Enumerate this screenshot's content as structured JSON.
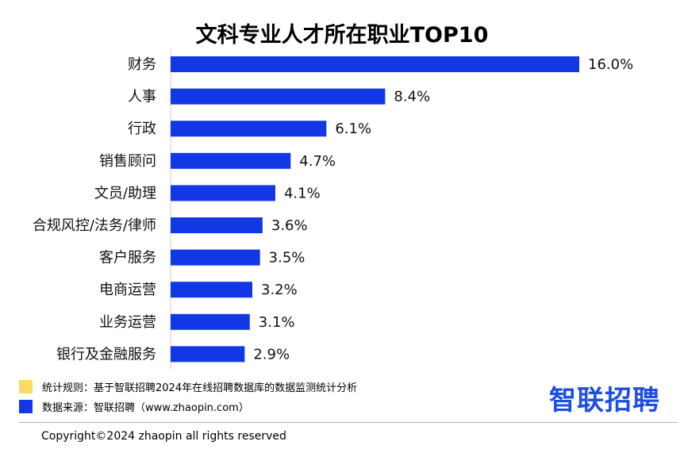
{
  "chart_data": {
    "type": "bar",
    "orientation": "horizontal",
    "title": "文科专业人才所在职业TOP10",
    "categories": [
      "财务",
      "人事",
      "行政",
      "销售顾问",
      "文员/助理",
      "合规风控/法务/律师",
      "客户服务",
      "电商运营",
      "业务运营",
      "银行及金融服务"
    ],
    "values": [
      16.0,
      8.4,
      6.1,
      4.7,
      4.1,
      3.6,
      3.5,
      3.2,
      3.1,
      2.9
    ],
    "value_labels": [
      "16.0%",
      "8.4%",
      "6.1%",
      "4.7%",
      "4.1%",
      "3.6%",
      "3.5%",
      "3.2%",
      "3.1%",
      "2.9%"
    ],
    "bar_color": "#1238e6",
    "xlim": [
      0,
      16.0
    ],
    "grid": false
  },
  "legend": {
    "items": [
      {
        "label": "统计规则：基于智联招聘2024年在线招聘数据库的数据监测统计分析",
        "color": "#ffd966"
      },
      {
        "label": "数据来源：智联招聘（www.zhaopin.com）",
        "color": "#1238e6"
      }
    ]
  },
  "brand": {
    "logo_text": "智联招聘",
    "color": "#1f4fe0"
  },
  "footer": {
    "copyright": "Copyright©2024 zhaopin all rights reserved"
  }
}
